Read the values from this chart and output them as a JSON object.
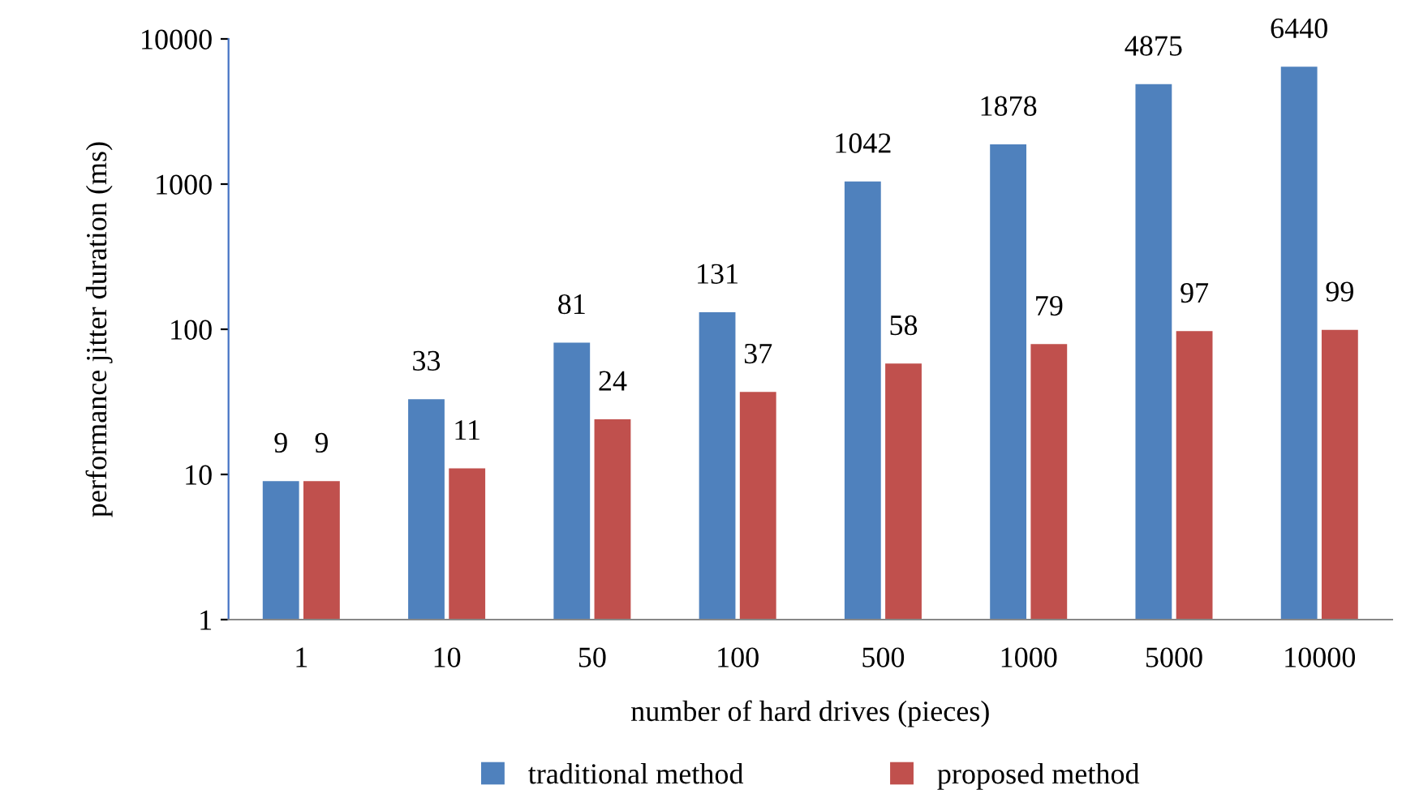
{
  "chart_data": {
    "type": "bar",
    "xlabel": "number of hard drives (pieces)",
    "ylabel": "performance jitter duration (ms)",
    "categories": [
      "1",
      "10",
      "50",
      "100",
      "500",
      "1000",
      "5000",
      "10000"
    ],
    "series": [
      {
        "name": "traditional method",
        "color": "#4f81bd",
        "values": [
          9,
          33,
          81,
          131,
          1042,
          1878,
          4875,
          6440
        ]
      },
      {
        "name": "proposed method",
        "color": "#c0504d",
        "values": [
          9,
          11,
          24,
          37,
          58,
          79,
          97,
          99
        ]
      }
    ],
    "log": "y",
    "ylim": [
      1,
      10000
    ],
    "yticks": [
      1,
      10,
      100,
      1000,
      10000
    ],
    "grid": false,
    "legend": "bottom",
    "data_labels": true
  }
}
